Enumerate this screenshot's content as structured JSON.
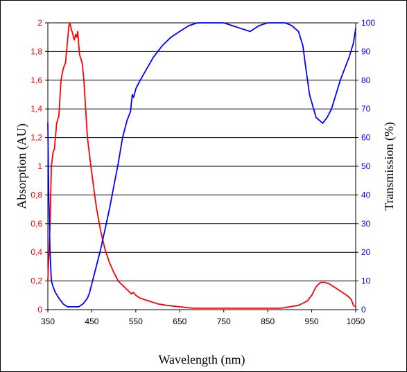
{
  "chart_data": {
    "type": "line",
    "xlabel": "Wavelength (nm)",
    "ylabel_left": "Absorption (AU)",
    "ylabel_right": "Transmission (%)",
    "xlim": [
      350,
      1050
    ],
    "ylim_left": [
      0,
      2
    ],
    "ylim_right": [
      0,
      100
    ],
    "x_ticks": [
      "350",
      "450",
      "550",
      "650",
      "750",
      "850",
      "950",
      "1050"
    ],
    "y_left_ticks": [
      "0",
      "0,2",
      "0,4",
      "0,6",
      "0,8",
      "1",
      "1,2",
      "1,4",
      "1,6",
      "1,8",
      "2"
    ],
    "y_right_ticks": [
      "0",
      "10",
      "20",
      "30",
      "40",
      "50",
      "60",
      "70",
      "80",
      "90",
      "100"
    ],
    "grid": "horizontal",
    "legend": "none",
    "series": [
      {
        "axis": "left",
        "color": "#ff0000",
        "x": [
          350,
          355,
          358,
          362,
          365,
          370,
          375,
          380,
          385,
          390,
          395,
          398,
          400,
          403,
          406,
          410,
          413,
          416,
          418,
          420,
          422,
          425,
          428,
          432,
          435,
          440,
          450,
          460,
          470,
          480,
          490,
          500,
          510,
          520,
          530,
          540,
          545,
          550,
          560,
          580,
          600,
          620,
          650,
          680,
          700,
          750,
          800,
          850,
          880,
          900,
          920,
          940,
          950,
          960,
          970,
          980,
          990,
          1000,
          1010,
          1020,
          1030,
          1040,
          1045,
          1050
        ],
        "y": [
          0.2,
          0.6,
          1.0,
          1.1,
          1.12,
          1.3,
          1.35,
          1.6,
          1.68,
          1.72,
          1.88,
          1.98,
          2.0,
          1.96,
          1.93,
          1.88,
          1.92,
          1.9,
          1.94,
          1.86,
          1.78,
          1.75,
          1.72,
          1.6,
          1.45,
          1.2,
          0.95,
          0.72,
          0.55,
          0.42,
          0.33,
          0.26,
          0.2,
          0.17,
          0.14,
          0.11,
          0.12,
          0.1,
          0.08,
          0.06,
          0.04,
          0.03,
          0.02,
          0.01,
          0.01,
          0.01,
          0.01,
          0.01,
          0.01,
          0.02,
          0.03,
          0.06,
          0.1,
          0.16,
          0.19,
          0.19,
          0.18,
          0.16,
          0.14,
          0.12,
          0.1,
          0.07,
          0.03,
          0.02
        ]
      },
      {
        "axis": "right",
        "color": "#0000ff",
        "x": [
          350,
          352,
          355,
          358,
          362,
          367,
          375,
          385,
          395,
          405,
          420,
          430,
          440,
          445,
          450,
          460,
          470,
          480,
          490,
          500,
          510,
          520,
          530,
          538,
          540,
          542,
          545,
          550,
          560,
          575,
          590,
          610,
          630,
          650,
          670,
          690,
          710,
          730,
          750,
          770,
          790,
          810,
          830,
          850,
          870,
          890,
          905,
          920,
          930,
          935,
          945,
          960,
          975,
          985,
          995,
          1005,
          1015,
          1025,
          1035,
          1045,
          1050
        ],
        "y": [
          65,
          40,
          20,
          10,
          8,
          6,
          4,
          2,
          1,
          1,
          1,
          2,
          4,
          6,
          9,
          15,
          21,
          28,
          35,
          43,
          51,
          60,
          66,
          69,
          72,
          75,
          74,
          77,
          80,
          84,
          88,
          92,
          95,
          97,
          99,
          100,
          100,
          100,
          100,
          99,
          98,
          97,
          99,
          100,
          100,
          100,
          99,
          97,
          92,
          86,
          75,
          67,
          65,
          67,
          70,
          75,
          80,
          84,
          88,
          93,
          98
        ]
      }
    ]
  }
}
